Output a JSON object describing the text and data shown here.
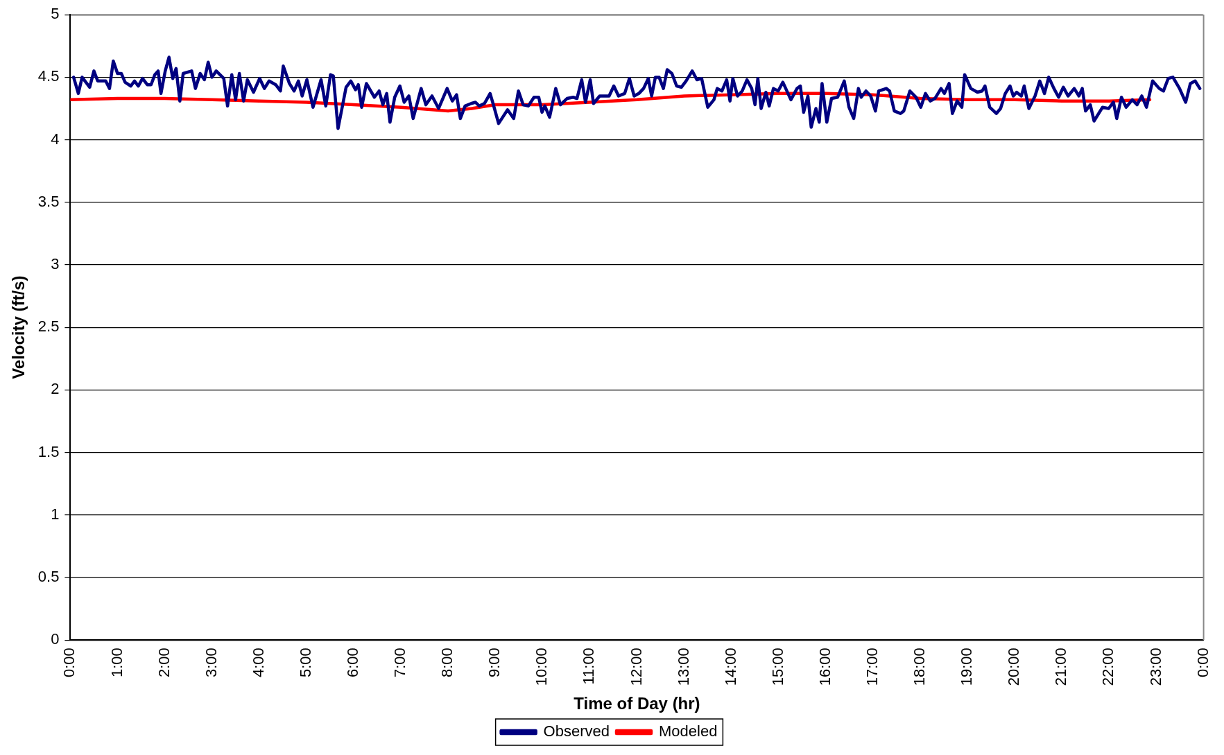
{
  "chart_data": {
    "type": "line",
    "xlabel": "Time of Day (hr)",
    "ylabel": "Velocity (ft/s)",
    "xlim": [
      0,
      24
    ],
    "ylim": [
      0,
      5
    ],
    "xticks": [
      {
        "value": 0,
        "label": "0:00"
      },
      {
        "value": 1,
        "label": "1:00"
      },
      {
        "value": 2,
        "label": "2:00"
      },
      {
        "value": 3,
        "label": "3:00"
      },
      {
        "value": 4,
        "label": "4:00"
      },
      {
        "value": 5,
        "label": "5:00"
      },
      {
        "value": 6,
        "label": "6:00"
      },
      {
        "value": 7,
        "label": "7:00"
      },
      {
        "value": 8,
        "label": "8:00"
      },
      {
        "value": 9,
        "label": "9:00"
      },
      {
        "value": 10,
        "label": "10:00"
      },
      {
        "value": 11,
        "label": "11:00"
      },
      {
        "value": 12,
        "label": "12:00"
      },
      {
        "value": 13,
        "label": "13:00"
      },
      {
        "value": 14,
        "label": "14:00"
      },
      {
        "value": 15,
        "label": "15:00"
      },
      {
        "value": 16,
        "label": "16:00"
      },
      {
        "value": 17,
        "label": "17:00"
      },
      {
        "value": 18,
        "label": "18:00"
      },
      {
        "value": 19,
        "label": "19:00"
      },
      {
        "value": 20,
        "label": "20:00"
      },
      {
        "value": 21,
        "label": "21:00"
      },
      {
        "value": 22,
        "label": "22:00"
      },
      {
        "value": 23,
        "label": "23:00"
      },
      {
        "value": 24,
        "label": "0:00"
      }
    ],
    "yticks": [
      0,
      0.5,
      1,
      1.5,
      2,
      2.5,
      3,
      3.5,
      4,
      4.5,
      5
    ],
    "grid": "y",
    "legend": "bottom",
    "marker": "none",
    "line_style": "solid",
    "series": [
      {
        "name": "Observed",
        "color": "#000080",
        "x": [
          0.07,
          0.17,
          0.25,
          0.41,
          0.5,
          0.58,
          0.75,
          0.83,
          0.91,
          1.0,
          1.08,
          1.16,
          1.28,
          1.36,
          1.44,
          1.53,
          1.63,
          1.71,
          1.79,
          1.86,
          1.92,
          2.01,
          2.09,
          2.17,
          2.24,
          2.32,
          2.39,
          2.57,
          2.65,
          2.75,
          2.84,
          2.92,
          3.0,
          3.09,
          3.25,
          3.33,
          3.42,
          3.5,
          3.58,
          3.67,
          3.75,
          3.88,
          4.01,
          4.11,
          4.21,
          4.35,
          4.45,
          4.51,
          4.64,
          4.74,
          4.83,
          4.91,
          5.01,
          5.14,
          5.31,
          5.41,
          5.51,
          5.57,
          5.67,
          5.84,
          5.94,
          6.04,
          6.1,
          6.17,
          6.27,
          6.44,
          6.54,
          6.62,
          6.7,
          6.77,
          6.87,
          6.98,
          7.07,
          7.17,
          7.26,
          7.43,
          7.53,
          7.66,
          7.8,
          7.98,
          8.09,
          8.18,
          8.26,
          8.36,
          8.49,
          8.58,
          8.66,
          8.77,
          8.89,
          8.96,
          9.07,
          9.26,
          9.39,
          9.49,
          9.59,
          9.7,
          9.82,
          9.92,
          9.99,
          10.05,
          10.15,
          10.28,
          10.38,
          10.52,
          10.65,
          10.73,
          10.83,
          10.91,
          11.01,
          11.08,
          11.21,
          11.31,
          11.41,
          11.51,
          11.61,
          11.74,
          11.84,
          11.94,
          12.04,
          12.14,
          12.24,
          12.31,
          12.39,
          12.47,
          12.56,
          12.64,
          12.74,
          12.84,
          12.94,
          13.04,
          13.17,
          13.27,
          13.37,
          13.5,
          13.63,
          13.7,
          13.8,
          13.9,
          13.97,
          14.03,
          14.13,
          14.23,
          14.33,
          14.43,
          14.5,
          14.56,
          14.63,
          14.73,
          14.8,
          14.89,
          14.99,
          15.09,
          15.26,
          15.39,
          15.46,
          15.53,
          15.62,
          15.69,
          15.79,
          15.86,
          15.92,
          16.02,
          16.12,
          16.25,
          16.39,
          16.49,
          16.59,
          16.69,
          16.75,
          16.85,
          16.95,
          17.05,
          17.12,
          17.28,
          17.35,
          17.45,
          17.58,
          17.65,
          17.78,
          17.91,
          18.01,
          18.11,
          18.21,
          18.31,
          18.44,
          18.51,
          18.61,
          18.68,
          18.78,
          18.88,
          18.94,
          19.07,
          19.21,
          19.31,
          19.37,
          19.47,
          19.61,
          19.7,
          19.8,
          19.9,
          19.97,
          20.04,
          20.14,
          20.2,
          20.3,
          20.43,
          20.53,
          20.63,
          20.72,
          20.83,
          20.93,
          21.03,
          21.13,
          21.26,
          21.36,
          21.43,
          21.5,
          21.6,
          21.68,
          21.86,
          21.99,
          22.09,
          22.16,
          22.26,
          22.36,
          22.49,
          22.59,
          22.69,
          22.79,
          22.92,
          23.06,
          23.15,
          23.25,
          23.35,
          23.49,
          23.62,
          23.72,
          23.82,
          23.92
        ],
        "values": [
          4.5,
          4.37,
          4.5,
          4.42,
          4.55,
          4.47,
          4.47,
          4.41,
          4.63,
          4.53,
          4.53,
          4.46,
          4.43,
          4.47,
          4.43,
          4.49,
          4.44,
          4.44,
          4.52,
          4.55,
          4.37,
          4.55,
          4.66,
          4.49,
          4.57,
          4.31,
          4.53,
          4.55,
          4.41,
          4.53,
          4.48,
          4.62,
          4.5,
          4.55,
          4.49,
          4.27,
          4.52,
          4.32,
          4.53,
          4.31,
          4.48,
          4.38,
          4.49,
          4.41,
          4.47,
          4.44,
          4.39,
          4.59,
          4.45,
          4.39,
          4.47,
          4.35,
          4.48,
          4.26,
          4.48,
          4.27,
          4.52,
          4.51,
          4.09,
          4.42,
          4.47,
          4.4,
          4.44,
          4.26,
          4.45,
          4.34,
          4.39,
          4.28,
          4.37,
          4.14,
          4.34,
          4.43,
          4.3,
          4.35,
          4.17,
          4.41,
          4.28,
          4.35,
          4.25,
          4.41,
          4.31,
          4.36,
          4.17,
          4.27,
          4.29,
          4.3,
          4.27,
          4.29,
          4.37,
          4.28,
          4.13,
          4.24,
          4.17,
          4.39,
          4.28,
          4.27,
          4.34,
          4.34,
          4.22,
          4.27,
          4.18,
          4.41,
          4.28,
          4.33,
          4.34,
          4.33,
          4.48,
          4.3,
          4.48,
          4.29,
          4.35,
          4.35,
          4.35,
          4.43,
          4.35,
          4.37,
          4.49,
          4.35,
          4.37,
          4.41,
          4.49,
          4.35,
          4.5,
          4.5,
          4.41,
          4.56,
          4.53,
          4.43,
          4.42,
          4.47,
          4.55,
          4.48,
          4.49,
          4.26,
          4.32,
          4.41,
          4.39,
          4.48,
          4.31,
          4.49,
          4.35,
          4.39,
          4.48,
          4.41,
          4.28,
          4.49,
          4.25,
          4.38,
          4.27,
          4.41,
          4.39,
          4.46,
          4.32,
          4.41,
          4.43,
          4.22,
          4.35,
          4.1,
          4.25,
          4.14,
          4.45,
          4.14,
          4.33,
          4.34,
          4.47,
          4.26,
          4.17,
          4.41,
          4.34,
          4.39,
          4.35,
          4.23,
          4.39,
          4.41,
          4.39,
          4.23,
          4.21,
          4.23,
          4.39,
          4.34,
          4.26,
          4.37,
          4.31,
          4.33,
          4.41,
          4.37,
          4.45,
          4.21,
          4.31,
          4.26,
          4.52,
          4.41,
          4.38,
          4.39,
          4.43,
          4.26,
          4.21,
          4.25,
          4.37,
          4.43,
          4.35,
          4.38,
          4.35,
          4.43,
          4.25,
          4.35,
          4.47,
          4.37,
          4.5,
          4.41,
          4.34,
          4.42,
          4.35,
          4.41,
          4.35,
          4.41,
          4.23,
          4.28,
          4.15,
          4.26,
          4.25,
          4.3,
          4.17,
          4.34,
          4.26,
          4.32,
          4.28,
          4.35,
          4.26,
          4.47,
          4.41,
          4.39,
          4.49,
          4.5,
          4.41,
          4.3,
          4.45,
          4.47,
          4.41
        ]
      },
      {
        "name": "Modeled",
        "color": "#ff0000",
        "x": [
          0,
          1,
          2,
          3,
          4,
          5,
          6,
          7,
          8,
          8.5,
          9,
          10,
          11,
          12,
          13,
          14,
          15,
          16,
          17,
          18,
          19,
          20,
          21,
          22,
          22.86
        ],
        "values": [
          4.32,
          4.33,
          4.33,
          4.32,
          4.31,
          4.3,
          4.28,
          4.26,
          4.23,
          4.25,
          4.28,
          4.28,
          4.3,
          4.32,
          4.35,
          4.36,
          4.37,
          4.37,
          4.36,
          4.33,
          4.32,
          4.32,
          4.31,
          4.31,
          4.32
        ]
      }
    ]
  }
}
